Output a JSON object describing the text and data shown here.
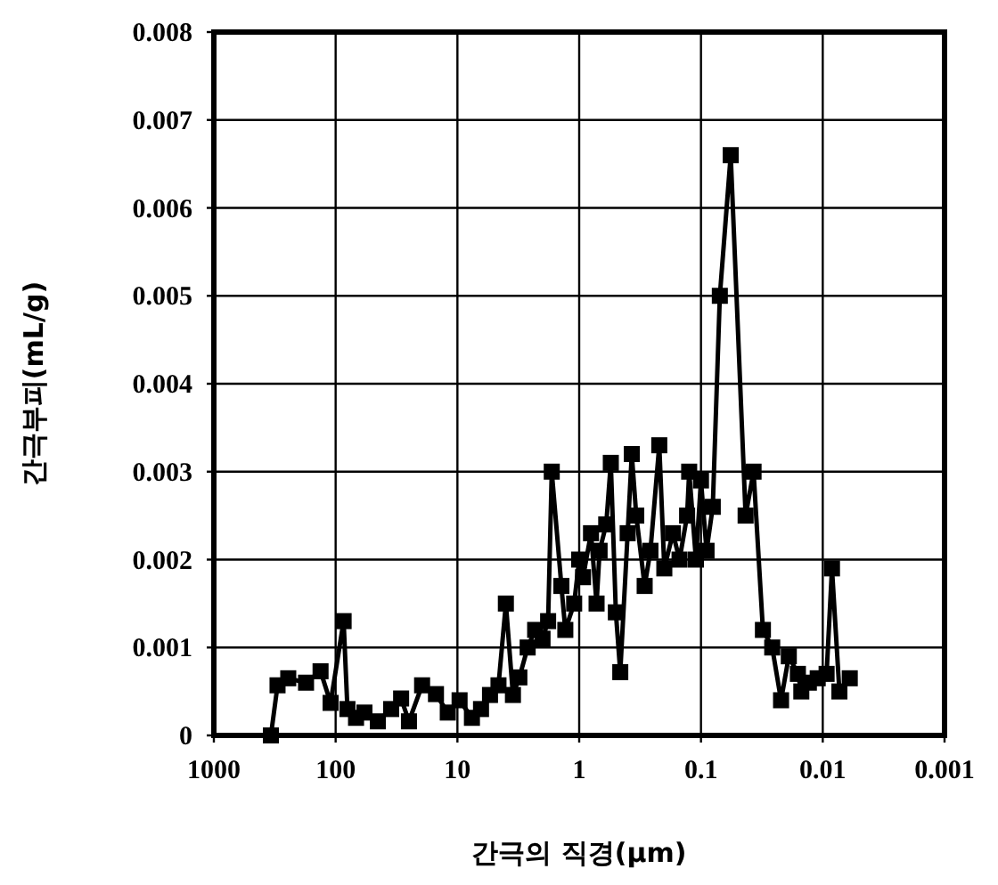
{
  "chart_data": {
    "type": "line",
    "xlabel": "간극의 직경(μm)",
    "ylabel": "간극부피(mL/g)",
    "log": "x",
    "xlim": [
      1000,
      0.001
    ],
    "xticks": [
      1000,
      100,
      10,
      1,
      0.1,
      0.01,
      0.001
    ],
    "ylim": [
      0,
      0.008
    ],
    "yticks": [
      0,
      0.001,
      0.002,
      0.003,
      0.004,
      0.005,
      0.006,
      0.007,
      0.008
    ],
    "grid": true,
    "marker": "square",
    "line_style": "solid",
    "series": [
      {
        "color": "#000000",
        "x": [
          340,
          300,
          245,
          175,
          133,
          110,
          86,
          80,
          68,
          58,
          45,
          35,
          29,
          25,
          19.5,
          15,
          12,
          9.6,
          7.6,
          6.4,
          5.4,
          4.6,
          4.0,
          3.5,
          3.1,
          2.65,
          2.3,
          2.0,
          1.8,
          1.68,
          1.4,
          1.3,
          1.1,
          1.0,
          0.93,
          0.8,
          0.72,
          0.68,
          0.6,
          0.55,
          0.5,
          0.46,
          0.4,
          0.37,
          0.34,
          0.29,
          0.26,
          0.22,
          0.2,
          0.17,
          0.15,
          0.13,
          0.125,
          0.11,
          0.1,
          0.09,
          0.08,
          0.07,
          0.057,
          0.043,
          0.037,
          0.031,
          0.026,
          0.022,
          0.019,
          0.016,
          0.015,
          0.013,
          0.011,
          0.0093,
          0.0084,
          0.0073,
          0.006
        ],
        "values": [
          0,
          0.00057,
          0.00065,
          0.0006,
          0.00073,
          0.00037,
          0.0013,
          0.0003,
          0.0002,
          0.00026,
          0.00016,
          0.0003,
          0.00042,
          0.00016,
          0.00057,
          0.00047,
          0.00026,
          0.0004,
          0.0002,
          0.0003,
          0.00046,
          0.00057,
          0.0015,
          0.00046,
          0.00066,
          0.001,
          0.0012,
          0.0011,
          0.0013,
          0.003,
          0.0017,
          0.0012,
          0.0015,
          0.002,
          0.0018,
          0.0023,
          0.0015,
          0.0021,
          0.0024,
          0.0031,
          0.0014,
          0.00072,
          0.0023,
          0.0032,
          0.0025,
          0.0017,
          0.0021,
          0.0033,
          0.0019,
          0.0023,
          0.002,
          0.0025,
          0.003,
          0.002,
          0.0029,
          0.0021,
          0.0026,
          0.005,
          0.0066,
          0.0025,
          0.003,
          0.0012,
          0.001,
          0.0004,
          0.0009,
          0.0007,
          0.0005,
          0.0006,
          0.00065,
          0.0007,
          0.0019,
          0.0005,
          0.00065
        ]
      }
    ]
  }
}
